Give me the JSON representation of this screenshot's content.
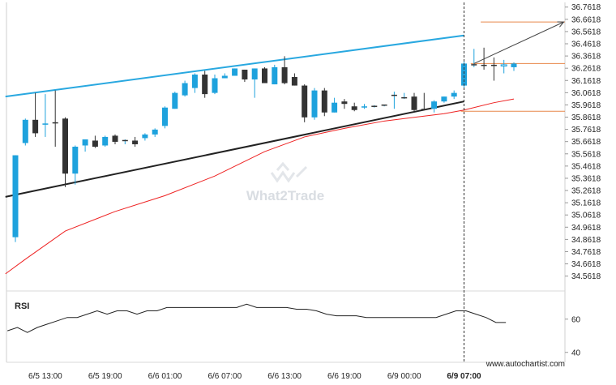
{
  "chart_data": {
    "type": "candlestick",
    "price_axis": {
      "ylim": [
        34.46,
        36.78
      ],
      "ticks": [
        "36.7618",
        "36.6618",
        "36.5618",
        "36.4618",
        "36.3618",
        "36.2618",
        "36.1618",
        "36.0618",
        "35.9618",
        "35.8618",
        "35.7618",
        "35.6618",
        "35.5618",
        "35.4618",
        "35.3618",
        "35.2618",
        "35.1618",
        "35.0618",
        "34.9618",
        "34.8618",
        "34.7618",
        "34.6618",
        "34.5618"
      ]
    },
    "time_axis": {
      "labels": [
        "6/5 13:00",
        "6/5 19:00",
        "6/6 01:00",
        "6/6 07:00",
        "6/6 13:00",
        "6/6 19:00",
        "6/9 00:00",
        "6/9 07:00"
      ],
      "label_candle_index": [
        3,
        9,
        15,
        21,
        27,
        33,
        39,
        45
      ],
      "bold_label_index": 7,
      "marker_candle_index": 45
    },
    "candles": [
      {
        "o": 34.88,
        "h": 35.55,
        "l": 34.84,
        "c": 35.55
      },
      {
        "o": 35.65,
        "h": 35.85,
        "l": 35.63,
        "c": 35.84
      },
      {
        "o": 35.84,
        "h": 36.06,
        "l": 35.7,
        "c": 35.73
      },
      {
        "o": 35.8,
        "h": 36.05,
        "l": 35.7,
        "c": 35.81
      },
      {
        "o": 35.82,
        "h": 36.08,
        "l": 35.62,
        "c": 35.82
      },
      {
        "o": 35.85,
        "h": 35.86,
        "l": 35.29,
        "c": 35.4
      },
      {
        "o": 35.4,
        "h": 35.63,
        "l": 35.31,
        "c": 35.62
      },
      {
        "o": 35.63,
        "h": 35.68,
        "l": 35.58,
        "c": 35.68
      },
      {
        "o": 35.67,
        "h": 35.71,
        "l": 35.61,
        "c": 35.62
      },
      {
        "o": 35.63,
        "h": 35.71,
        "l": 35.62,
        "c": 35.7
      },
      {
        "o": 35.71,
        "h": 35.72,
        "l": 35.64,
        "c": 35.66
      },
      {
        "o": 35.66,
        "h": 35.68,
        "l": 35.64,
        "c": 35.67
      },
      {
        "o": 35.67,
        "h": 35.7,
        "l": 35.62,
        "c": 35.64
      },
      {
        "o": 35.69,
        "h": 35.73,
        "l": 35.67,
        "c": 35.72
      },
      {
        "o": 35.72,
        "h": 35.77,
        "l": 35.7,
        "c": 35.76
      },
      {
        "o": 35.79,
        "h": 35.95,
        "l": 35.77,
        "c": 35.94
      },
      {
        "o": 35.93,
        "h": 36.07,
        "l": 35.93,
        "c": 36.06
      },
      {
        "o": 36.04,
        "h": 36.16,
        "l": 36.03,
        "c": 36.14
      },
      {
        "o": 36.1,
        "h": 36.22,
        "l": 36.06,
        "c": 36.21
      },
      {
        "o": 36.21,
        "h": 36.24,
        "l": 36.02,
        "c": 36.05
      },
      {
        "o": 36.06,
        "h": 36.21,
        "l": 36.05,
        "c": 36.18
      },
      {
        "o": 36.18,
        "h": 36.22,
        "l": 36.18,
        "c": 36.2
      },
      {
        "o": 36.2,
        "h": 36.26,
        "l": 36.2,
        "c": 36.26
      },
      {
        "o": 36.25,
        "h": 36.25,
        "l": 36.15,
        "c": 36.17
      },
      {
        "o": 36.17,
        "h": 36.26,
        "l": 36.02,
        "c": 36.26
      },
      {
        "o": 36.26,
        "h": 36.27,
        "l": 36.14,
        "c": 36.14
      },
      {
        "o": 36.13,
        "h": 36.29,
        "l": 36.13,
        "c": 36.27
      },
      {
        "o": 36.27,
        "h": 36.36,
        "l": 36.13,
        "c": 36.14
      },
      {
        "o": 36.19,
        "h": 36.22,
        "l": 36.12,
        "c": 36.12
      },
      {
        "o": 36.12,
        "h": 36.13,
        "l": 35.82,
        "c": 35.86
      },
      {
        "o": 35.86,
        "h": 36.1,
        "l": 35.84,
        "c": 36.08
      },
      {
        "o": 36.08,
        "h": 36.1,
        "l": 35.87,
        "c": 35.9
      },
      {
        "o": 35.9,
        "h": 36.02,
        "l": 35.9,
        "c": 35.98
      },
      {
        "o": 35.99,
        "h": 36.01,
        "l": 35.93,
        "c": 35.97
      },
      {
        "o": 35.95,
        "h": 35.98,
        "l": 35.91,
        "c": 35.92
      },
      {
        "o": 35.94,
        "h": 35.97,
        "l": 35.93,
        "c": 35.95
      },
      {
        "o": 35.95,
        "h": 35.96,
        "l": 35.94,
        "c": 35.95
      },
      {
        "o": 35.96,
        "h": 35.96,
        "l": 35.95,
        "c": 35.96
      },
      {
        "o": 36.04,
        "h": 36.07,
        "l": 35.93,
        "c": 36.04
      },
      {
        "o": 36.06,
        "h": 36.06,
        "l": 36.01,
        "c": 36.02
      },
      {
        "o": 36.03,
        "h": 36.06,
        "l": 35.91,
        "c": 35.92
      },
      {
        "o": 35.93,
        "h": 36.06,
        "l": 35.92,
        "c": 35.93
      },
      {
        "o": 35.93,
        "h": 36.0,
        "l": 35.9,
        "c": 35.99
      },
      {
        "o": 35.99,
        "h": 36.03,
        "l": 35.98,
        "c": 36.03
      },
      {
        "o": 36.03,
        "h": 36.08,
        "l": 36.01,
        "c": 36.06
      },
      {
        "o": 36.12,
        "h": 36.32,
        "l": 36.1,
        "c": 36.3
      },
      {
        "o": 36.29,
        "h": 36.42,
        "l": 36.27,
        "c": 36.29
      },
      {
        "o": 36.29,
        "h": 36.43,
        "l": 36.25,
        "c": 36.29
      },
      {
        "o": 36.29,
        "h": 36.35,
        "l": 36.16,
        "c": 36.28
      },
      {
        "o": 36.28,
        "h": 36.33,
        "l": 36.22,
        "c": 36.29
      },
      {
        "o": 36.27,
        "h": 36.31,
        "l": 36.24,
        "c": 36.3
      }
    ],
    "candle_styles": {
      "default": "bull",
      "bear": [
        2,
        4,
        5,
        8,
        10,
        12,
        19,
        23,
        25,
        27,
        28,
        29,
        31,
        33,
        34,
        40,
        41,
        47,
        48
      ],
      "doji": [
        11,
        36,
        37,
        38,
        39,
        46
      ],
      "hollow": [
        49
      ]
    },
    "moving_average": {
      "color": "#ee2222",
      "points": [
        [
          -1,
          34.58
        ],
        [
          1,
          34.7
        ],
        [
          5,
          34.93
        ],
        [
          10,
          35.09
        ],
        [
          15,
          35.22
        ],
        [
          20,
          35.38
        ],
        [
          25,
          35.58
        ],
        [
          29,
          35.7
        ],
        [
          33,
          35.77
        ],
        [
          37,
          35.83
        ],
        [
          41,
          35.87
        ],
        [
          43,
          35.89
        ],
        [
          45,
          35.92
        ],
        [
          48,
          35.98
        ],
        [
          50,
          36.01
        ]
      ]
    },
    "upper_trendline": {
      "color": "#29a8e0",
      "from": [
        -1,
        36.03
      ],
      "to": [
        45,
        36.53
      ]
    },
    "lower_trendline": {
      "color": "#222222",
      "from": [
        -1,
        35.21
      ],
      "to": [
        45,
        35.99
      ]
    },
    "target_arrow": {
      "color": "#444444",
      "from": [
        46,
        36.3
      ],
      "to": [
        55,
        36.64
      ]
    },
    "levels": [
      {
        "value": 36.64,
        "color": "#e8874a",
        "from_index": 47
      },
      {
        "value": 36.3,
        "color": "#e8874a",
        "from_index": 46
      },
      {
        "value": 35.91,
        "color": "#e8874a",
        "from_index": 45
      }
    ],
    "rsi": {
      "title": "RSI",
      "ylim": [
        35,
        75
      ],
      "ticks": [
        "60",
        "40"
      ],
      "values": [
        53,
        55,
        52,
        55,
        57,
        59,
        61,
        61,
        63,
        65,
        63,
        65,
        65,
        63,
        65,
        65,
        67,
        67,
        67,
        67,
        67,
        67,
        67,
        67,
        69,
        67,
        67,
        67,
        67,
        66,
        66,
        65,
        63,
        62,
        62,
        62,
        61,
        61,
        61,
        61,
        61,
        61,
        61,
        61,
        63,
        65,
        65,
        63,
        61,
        58,
        58
      ]
    }
  },
  "watermark": "What2Trade",
  "footer_url": "www.autochartist.com"
}
